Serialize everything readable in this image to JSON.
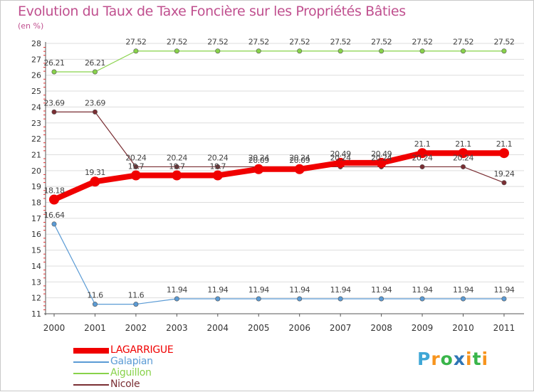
{
  "header": {
    "title": "Evolution du Taux de Taxe Foncière sur les Propriétés Bâties",
    "unit_label": "(en %)",
    "title_color": "#c0508f"
  },
  "chart_data": {
    "type": "line",
    "title": "Evolution du Taux de Taxe Foncière sur les Propriétés Bâties",
    "ylabel": "(en %)",
    "xlabel": "",
    "ylim": [
      11,
      28
    ],
    "grid": "horizontal",
    "legend_position": "bottom-left",
    "categories": [
      "2000",
      "2001",
      "2002",
      "2003",
      "2004",
      "2005",
      "2006",
      "2007",
      "2008",
      "2009",
      "2010",
      "2011"
    ],
    "series": [
      {
        "name": "LAGARRIGUE",
        "color": "#f00000",
        "emphasis": "thick",
        "values": [
          18.18,
          19.31,
          19.7,
          19.7,
          19.7,
          20.09,
          20.09,
          20.49,
          20.49,
          21.1,
          21.1,
          21.1
        ],
        "labels": [
          "18.18",
          "19.31",
          "19.7",
          "19.7",
          "19.7",
          "20.09",
          "20.09",
          "20.49",
          "20.49",
          "21.1",
          "21.1",
          "21.1"
        ]
      },
      {
        "name": "Galapian",
        "color": "#5b9bd5",
        "emphasis": "thin",
        "values": [
          16.64,
          11.6,
          11.6,
          11.94,
          11.94,
          11.94,
          11.94,
          11.94,
          11.94,
          11.94,
          11.94,
          11.94
        ],
        "labels": [
          "16.64",
          "11.6",
          "11.6",
          "11.94",
          "11.94",
          "11.94",
          "11.94",
          "11.94",
          "11.94",
          "11.94",
          "11.94",
          "11.94"
        ]
      },
      {
        "name": "Aiguillon",
        "color": "#88d24a",
        "emphasis": "thin",
        "values": [
          26.21,
          26.21,
          27.52,
          27.52,
          27.52,
          27.52,
          27.52,
          27.52,
          27.52,
          27.52,
          27.52,
          27.52
        ],
        "labels": [
          "26.21",
          "26.21",
          "27.52",
          "27.52",
          "27.52",
          "27.52",
          "27.52",
          "27.52",
          "27.52",
          "27.52",
          "27.52",
          "27.52"
        ]
      },
      {
        "name": "Nicole",
        "color": "#7a2e33",
        "emphasis": "thin",
        "values": [
          23.69,
          23.69,
          20.24,
          20.24,
          20.24,
          20.24,
          20.24,
          20.24,
          20.24,
          20.24,
          20.24,
          19.24
        ],
        "labels": [
          "23.69",
          "23.69",
          "20.24",
          "20.24",
          "20.24",
          "20.24",
          "20.24",
          "20.24",
          "20.24",
          "20.24",
          "20.24",
          "19.24"
        ]
      }
    ]
  },
  "legend": {
    "items": [
      {
        "label": "LAGARRIGUE",
        "color": "#f00000"
      },
      {
        "label": "Galapian",
        "color": "#5b9bd5"
      },
      {
        "label": "Aiguillon",
        "color": "#88d24a"
      },
      {
        "label": "Nicole",
        "color": "#7a2e33"
      }
    ]
  },
  "logo": {
    "text": "Proxiti",
    "letters": [
      "P",
      "r",
      "o",
      "x",
      "i",
      "t",
      "i"
    ],
    "colors": [
      "#3fa7d6",
      "#f7941d",
      "#39b54a",
      "#2e75b6",
      "#f7941d",
      "#39b54a",
      "#f7941d"
    ]
  }
}
